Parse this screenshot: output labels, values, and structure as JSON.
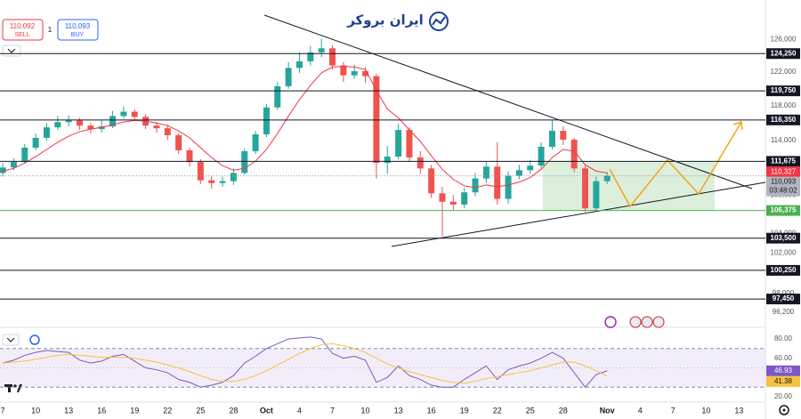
{
  "logo": "ایران بروکر",
  "order_panel": {
    "sell_price": "110,092",
    "sell_label": "SELL",
    "quantity": "1",
    "buy_price": "110,093",
    "buy_label": "BUY"
  },
  "chart_data": [
    {
      "type": "candlestick",
      "x": [
        0,
        1,
        2,
        3,
        4,
        5,
        6,
        7,
        8,
        9,
        10,
        11,
        12,
        13,
        14,
        15,
        16,
        17,
        18,
        19,
        20,
        21,
        22,
        23,
        24,
        25,
        26,
        27,
        28,
        29,
        30,
        31,
        32,
        33,
        34,
        35,
        36,
        37,
        38,
        39,
        40,
        41,
        42,
        43,
        44,
        45,
        46,
        47,
        48,
        49,
        50,
        51,
        52,
        53,
        54,
        55
      ],
      "open": [
        110400,
        111000,
        111600,
        113200,
        114300,
        115500,
        116100,
        116300,
        115700,
        115300,
        115600,
        116800,
        117300,
        116700,
        115700,
        115400,
        114600,
        112900,
        111600,
        109600,
        109300,
        109500,
        110400,
        112800,
        114700,
        117800,
        120300,
        122500,
        123300,
        124400,
        124900,
        122800,
        121600,
        122100,
        121500,
        111500,
        112200,
        115200,
        112100,
        110900,
        108200,
        107300,
        107000,
        108300,
        109800,
        111100,
        107600,
        110100,
        110700,
        111200,
        113300,
        115100,
        114100,
        110900,
        106600,
        109500
      ],
      "high": [
        111500,
        112000,
        113600,
        114800,
        116000,
        116800,
        116900,
        116600,
        116000,
        116300,
        117400,
        117900,
        117600,
        117000,
        116100,
        115800,
        114800,
        113200,
        111900,
        110100,
        110000,
        110900,
        113100,
        115100,
        118200,
        120800,
        123200,
        124400,
        125200,
        126100,
        125300,
        123200,
        122900,
        122600,
        121800,
        113400,
        115900,
        115500,
        112800,
        111300,
        108900,
        108000,
        108800,
        110400,
        111600,
        113800,
        110600,
        111300,
        111800,
        113800,
        116300,
        115600,
        114300,
        111200,
        110000,
        110500
      ],
      "low": [
        110000,
        110700,
        111400,
        112900,
        114000,
        115200,
        115600,
        115200,
        114800,
        114900,
        115400,
        116500,
        116200,
        115300,
        114900,
        114100,
        112500,
        111100,
        109200,
        108700,
        108900,
        109100,
        110200,
        112500,
        114400,
        117500,
        120000,
        121900,
        122800,
        123800,
        122300,
        120800,
        121200,
        120700,
        109800,
        110300,
        111900,
        111600,
        110300,
        107700,
        103700,
        106400,
        106600,
        107900,
        109300,
        107000,
        107100,
        109700,
        110300,
        110900,
        113000,
        113500,
        110500,
        106200,
        106400,
        109200
      ],
      "close": [
        111000,
        111600,
        113200,
        114300,
        115500,
        116100,
        116300,
        115700,
        115300,
        115600,
        116800,
        117300,
        116700,
        115700,
        115400,
        114600,
        112900,
        111600,
        109600,
        109300,
        109500,
        110400,
        112800,
        114700,
        117800,
        120300,
        122500,
        123300,
        124400,
        124900,
        122800,
        121600,
        122100,
        121500,
        111500,
        112200,
        115200,
        112100,
        110900,
        108200,
        107300,
        107000,
        108300,
        109800,
        111100,
        107600,
        110100,
        110700,
        111200,
        113300,
        115100,
        114100,
        110900,
        106600,
        109500,
        110100
      ],
      "up_color": "#26a69a",
      "down_color": "#ef5350",
      "ma": {
        "color": "#f23645",
        "values": [
          110600,
          110900,
          111500,
          112200,
          113000,
          113800,
          114500,
          115000,
          115300,
          115500,
          115800,
          116100,
          116300,
          116200,
          116000,
          115700,
          115100,
          114300,
          113200,
          112100,
          111200,
          110700,
          110900,
          111700,
          113000,
          114800,
          116800,
          118700,
          120400,
          121900,
          122600,
          122700,
          122600,
          122300,
          119800,
          117600,
          116600,
          115200,
          113900,
          112300,
          110800,
          109700,
          109000,
          108800,
          109100,
          108900,
          109100,
          109400,
          109900,
          110800,
          112100,
          113000,
          112800,
          111300,
          110600,
          110400
        ]
      },
      "xlim": [
        -0.25,
        69.4
      ],
      "xticks": [
        {
          "value": 0,
          "label": "7"
        },
        {
          "value": 3,
          "label": "10"
        },
        {
          "value": 6,
          "label": "13"
        },
        {
          "value": 9,
          "label": "16"
        },
        {
          "value": 12,
          "label": "19"
        },
        {
          "value": 15,
          "label": "22"
        },
        {
          "value": 18,
          "label": "25"
        },
        {
          "value": 21,
          "label": "28"
        },
        {
          "value": 24,
          "label": "Oct"
        },
        {
          "value": 27,
          "label": "4"
        },
        {
          "value": 30,
          "label": "7"
        },
        {
          "value": 33,
          "label": "10"
        },
        {
          "value": 36,
          "label": "13"
        },
        {
          "value": 39,
          "label": "16"
        },
        {
          "value": 42,
          "label": "19"
        },
        {
          "value": 45,
          "label": "22"
        },
        {
          "value": 48,
          "label": "25"
        },
        {
          "value": 51,
          "label": "28"
        },
        {
          "value": 55,
          "label": "Nov"
        },
        {
          "value": 58,
          "label": "4"
        },
        {
          "value": 61,
          "label": "7"
        },
        {
          "value": 64,
          "label": "10"
        },
        {
          "value": 67,
          "label": "13"
        }
      ],
      "ylim": [
        95000,
        129300
      ],
      "log_scale": true,
      "yticks": [
        {
          "value": 126000,
          "label": "126,000"
        },
        {
          "value": 122000,
          "label": "122,000"
        },
        {
          "value": 118000,
          "label": "118,000"
        },
        {
          "value": 114000,
          "label": "114,000"
        },
        {
          "value": 108000,
          "label": "108,000"
        },
        {
          "value": 104000,
          "label": "104,000"
        },
        {
          "value": 102000,
          "label": "102,000"
        },
        {
          "value": 98000,
          "label": "98,000"
        },
        {
          "value": 96200,
          "label": "96,200"
        }
      ],
      "levels": [
        {
          "value": 124250,
          "label": "124,250",
          "color": "#131722"
        },
        {
          "value": 119750,
          "label": "119,750",
          "color": "#131722"
        },
        {
          "value": 116350,
          "label": "116,350",
          "color": "#131722"
        },
        {
          "value": 111675,
          "label": "111,675",
          "color": "#131722"
        },
        {
          "value": 106375,
          "label": "106,375",
          "color": "#4caf50"
        },
        {
          "value": 103500,
          "label": "103,500",
          "color": "#131722"
        },
        {
          "value": 100250,
          "label": "100,250",
          "color": "#131722"
        },
        {
          "value": 97450,
          "label": "97,450",
          "color": "#131722"
        }
      ],
      "price_labels": [
        {
          "value": 110327,
          "label": "110,327",
          "color": "#f23645"
        },
        {
          "value": 110093,
          "label": "110,093",
          "color": "#b2b5be",
          "countdown": "03:48:02"
        }
      ]
    },
    {
      "type": "line",
      "series": [
        {
          "color": "#7e57c2",
          "values": [
            55,
            58,
            63,
            66,
            68,
            67,
            66,
            58,
            55,
            57,
            62,
            64,
            57,
            50,
            48,
            45,
            38,
            35,
            30,
            32,
            35,
            42,
            55,
            62,
            70,
            75,
            80,
            81,
            82,
            80,
            65,
            60,
            62,
            58,
            35,
            40,
            52,
            42,
            38,
            32,
            30,
            30,
            38,
            45,
            52,
            38,
            48,
            52,
            55,
            60,
            66,
            60,
            45,
            30,
            43,
            46.93
          ]
        },
        {
          "color": "#f5c242",
          "values": [
            55,
            56,
            57,
            59,
            61,
            63,
            64,
            63,
            62,
            61,
            61,
            61,
            60,
            58,
            56,
            53,
            50,
            46,
            42,
            38,
            36,
            36,
            38,
            42,
            47,
            53,
            59,
            65,
            70,
            74,
            75,
            73,
            70,
            66,
            60,
            54,
            50,
            46,
            43,
            40,
            37,
            35,
            34,
            36,
            39,
            41,
            43,
            45,
            47,
            50,
            53,
            56,
            56,
            52,
            47,
            41.38
          ]
        }
      ],
      "ylim": [
        14.5,
        88.3
      ],
      "yticks": [
        {
          "value": 80,
          "label": "80.00"
        },
        {
          "value": 60,
          "label": "60.00"
        },
        {
          "value": 20,
          "label": "20.00"
        }
      ],
      "bands": [
        70,
        30
      ],
      "midline": 50,
      "band_color": "#7e57c2"
    }
  ]
}
